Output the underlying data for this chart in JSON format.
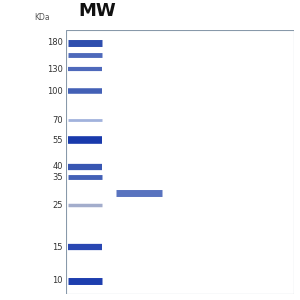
{
  "title": "MW",
  "kda_label": "KDa",
  "gel_bg_color": "#b8ccd8",
  "outer_bg_color": "#ffffff",
  "border_color": "#8899aa",
  "ladder_bands": [
    {
      "kda": 180,
      "lw": 5.0,
      "color": "#2244aa",
      "alpha": 0.95
    },
    {
      "kda": 155,
      "lw": 3.5,
      "color": "#2244aa",
      "alpha": 0.8
    },
    {
      "kda": 130,
      "lw": 3.0,
      "color": "#2244aa",
      "alpha": 0.8
    },
    {
      "kda": 100,
      "lw": 4.0,
      "color": "#2244aa",
      "alpha": 0.85
    },
    {
      "kda": 70,
      "lw": 2.0,
      "color": "#4466bb",
      "alpha": 0.5
    },
    {
      "kda": 55,
      "lw": 5.5,
      "color": "#1133aa",
      "alpha": 0.97
    },
    {
      "kda": 40,
      "lw": 4.5,
      "color": "#2244aa",
      "alpha": 0.9
    },
    {
      "kda": 35,
      "lw": 3.5,
      "color": "#2244aa",
      "alpha": 0.85
    },
    {
      "kda": 25,
      "lw": 2.5,
      "color": "#6677aa",
      "alpha": 0.6
    },
    {
      "kda": 15,
      "lw": 4.5,
      "color": "#1133aa",
      "alpha": 0.9
    },
    {
      "kda": 10,
      "lw": 5.0,
      "color": "#1133aa",
      "alpha": 0.95
    }
  ],
  "sample_band": {
    "kda": 29,
    "color": "#2244aa",
    "alpha": 0.75,
    "lw": 5.0
  },
  "mw_labels": [
    180,
    130,
    100,
    70,
    55,
    40,
    35,
    25,
    15,
    10
  ],
  "label_fontsize": 6.0,
  "title_fontsize": 13,
  "kda_fontsize": 5.5,
  "fig_width": 3.0,
  "fig_height": 3.0,
  "dpi": 100
}
